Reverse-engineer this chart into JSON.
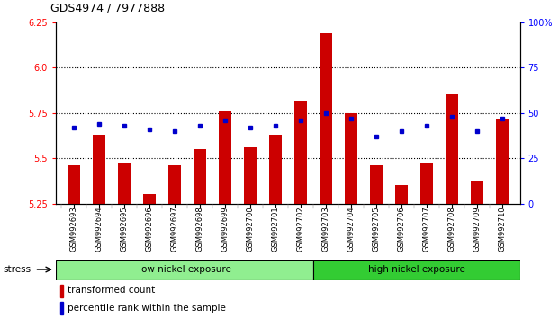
{
  "title": "GDS4974 / 7977888",
  "samples": [
    "GSM992693",
    "GSM992694",
    "GSM992695",
    "GSM992696",
    "GSM992697",
    "GSM992698",
    "GSM992699",
    "GSM992700",
    "GSM992701",
    "GSM992702",
    "GSM992703",
    "GSM992704",
    "GSM992705",
    "GSM992706",
    "GSM992707",
    "GSM992708",
    "GSM992709",
    "GSM992710"
  ],
  "red_values": [
    5.46,
    5.63,
    5.47,
    5.3,
    5.46,
    5.55,
    5.76,
    5.56,
    5.63,
    5.82,
    6.19,
    5.75,
    5.46,
    5.35,
    5.47,
    5.85,
    5.37,
    5.72
  ],
  "blue_values": [
    42,
    44,
    43,
    41,
    40,
    43,
    46,
    42,
    43,
    46,
    50,
    47,
    37,
    40,
    43,
    48,
    40,
    47
  ],
  "ymin": 5.25,
  "ymax": 6.25,
  "y2min": 0,
  "y2max": 100,
  "yticks": [
    5.25,
    5.5,
    5.75,
    6.0,
    6.25
  ],
  "y2ticks": [
    0,
    25,
    50,
    75,
    100
  ],
  "grid_values": [
    5.5,
    5.75,
    6.0
  ],
  "low_nickel_count": 10,
  "high_nickel_count": 8,
  "group_labels": [
    "low nickel exposure",
    "high nickel exposure"
  ],
  "low_color": "#90ee90",
  "high_color": "#33cc33",
  "stress_label": "stress",
  "legend1": "transformed count",
  "legend2": "percentile rank within the sample",
  "bar_color": "#cc0000",
  "dot_color": "#0000cc",
  "bar_width": 0.5,
  "base_value": 5.25,
  "bg_color": "#ffffff"
}
